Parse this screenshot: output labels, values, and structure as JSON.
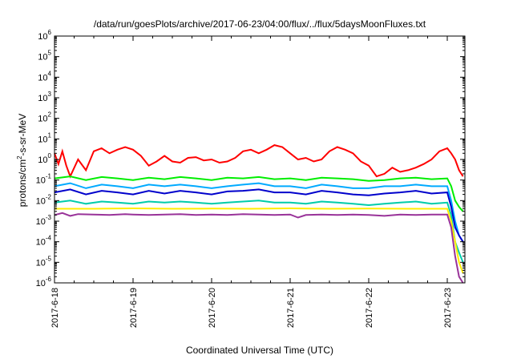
{
  "chart_data": {
    "type": "line",
    "title": "/data/run/goesPlots/archive/2017-06-23/04:00/flux/../flux/5daysMoonFluxes.txt",
    "xlabel": "Coordinated Universal Time (UTC)",
    "ylabel_main": "protons/cm",
    "ylabel_sup": "2",
    "ylabel_rest": "-s-sr-MeV",
    "y_scale": "log",
    "ylim": [
      1e-06,
      1000000.0
    ],
    "xlim_days": [
      0,
      5.2
    ],
    "grid": false,
    "legend": "none",
    "x_tick_labels": [
      "2017-6-18",
      "2017-6-19",
      "2017-6-20",
      "2017-6-21",
      "2017-6-22",
      "2017-6-23"
    ],
    "y_ticks": [
      {
        "base": "10",
        "exp": "-6"
      },
      {
        "base": "10",
        "exp": "-5"
      },
      {
        "base": "10",
        "exp": "-4"
      },
      {
        "base": "10",
        "exp": "-3"
      },
      {
        "base": "10",
        "exp": "-2"
      },
      {
        "base": "10",
        "exp": "-1"
      },
      {
        "base": "10",
        "exp": "0"
      },
      {
        "base": "10",
        "exp": "1"
      },
      {
        "base": "10",
        "exp": "2"
      },
      {
        "base": "10",
        "exp": "3"
      },
      {
        "base": "10",
        "exp": "4"
      },
      {
        "base": "10",
        "exp": "5"
      },
      {
        "base": "10",
        "exp": "6"
      }
    ],
    "series": [
      {
        "color": "#ff0000",
        "x": [
          0,
          0.05,
          0.1,
          0.15,
          0.2,
          0.3,
          0.4,
          0.5,
          0.6,
          0.7,
          0.8,
          0.9,
          1.0,
          1.1,
          1.2,
          1.3,
          1.4,
          1.5,
          1.6,
          1.7,
          1.8,
          1.9,
          2.0,
          2.1,
          2.2,
          2.3,
          2.4,
          2.5,
          2.6,
          2.7,
          2.8,
          2.9,
          3.0,
          3.1,
          3.2,
          3.3,
          3.4,
          3.5,
          3.6,
          3.7,
          3.8,
          3.9,
          4.0,
          4.1,
          4.2,
          4.3,
          4.4,
          4.5,
          4.6,
          4.7,
          4.8,
          4.9,
          5.0,
          5.05,
          5.1,
          5.15,
          5.2
        ],
        "y": [
          2.0,
          0.6,
          2.5,
          0.5,
          0.15,
          1.0,
          0.3,
          2.5,
          3.5,
          2.0,
          3.0,
          4.0,
          3.0,
          1.5,
          0.5,
          0.8,
          1.5,
          0.8,
          0.7,
          1.2,
          1.3,
          0.9,
          1.0,
          0.7,
          0.8,
          1.2,
          2.5,
          3.0,
          2.0,
          3.0,
          5.0,
          4.0,
          2.0,
          1.0,
          1.2,
          0.8,
          1.0,
          2.5,
          4.0,
          3.0,
          2.0,
          0.8,
          0.5,
          0.15,
          0.2,
          0.4,
          0.25,
          0.3,
          0.4,
          0.6,
          1.0,
          2.5,
          3.5,
          2.0,
          1.0,
          0.3,
          0.15
        ]
      },
      {
        "color": "#00ee00",
        "x": [
          0,
          0.2,
          0.4,
          0.6,
          0.8,
          1.0,
          1.2,
          1.4,
          1.6,
          1.8,
          2.0,
          2.2,
          2.4,
          2.6,
          2.8,
          3.0,
          3.2,
          3.4,
          3.6,
          3.8,
          4.0,
          4.2,
          4.4,
          4.6,
          4.8,
          5.0,
          5.05,
          5.1,
          5.15,
          5.2
        ],
        "y": [
          0.12,
          0.15,
          0.1,
          0.14,
          0.12,
          0.1,
          0.13,
          0.11,
          0.14,
          0.12,
          0.1,
          0.13,
          0.12,
          0.14,
          0.11,
          0.12,
          0.1,
          0.13,
          0.12,
          0.11,
          0.09,
          0.1,
          0.12,
          0.13,
          0.11,
          0.12,
          0.05,
          0.01,
          0.005,
          0.003
        ]
      },
      {
        "color": "#00aaff",
        "x": [
          0,
          0.2,
          0.4,
          0.6,
          0.8,
          1.0,
          1.2,
          1.4,
          1.6,
          1.8,
          2.0,
          2.2,
          2.4,
          2.6,
          2.8,
          3.0,
          3.2,
          3.4,
          3.6,
          3.8,
          4.0,
          4.2,
          4.4,
          4.6,
          4.8,
          5.0,
          5.05,
          5.1,
          5.15,
          5.2
        ],
        "y": [
          0.05,
          0.07,
          0.04,
          0.06,
          0.05,
          0.04,
          0.06,
          0.05,
          0.06,
          0.05,
          0.04,
          0.05,
          0.06,
          0.07,
          0.05,
          0.05,
          0.04,
          0.06,
          0.05,
          0.04,
          0.04,
          0.05,
          0.05,
          0.06,
          0.05,
          0.05,
          0.01,
          0.001,
          0.0002,
          0.0001
        ]
      },
      {
        "color": "#0000cc",
        "x": [
          0,
          0.2,
          0.4,
          0.6,
          0.8,
          1.0,
          1.2,
          1.4,
          1.6,
          1.8,
          2.0,
          2.2,
          2.4,
          2.6,
          2.8,
          3.0,
          3.2,
          3.4,
          3.6,
          3.8,
          4.0,
          4.2,
          4.4,
          4.6,
          4.8,
          5.0,
          5.05,
          5.1,
          5.15,
          5.2
        ],
        "y": [
          0.025,
          0.035,
          0.02,
          0.03,
          0.025,
          0.02,
          0.03,
          0.022,
          0.03,
          0.025,
          0.02,
          0.028,
          0.03,
          0.035,
          0.025,
          0.025,
          0.02,
          0.03,
          0.025,
          0.02,
          0.018,
          0.022,
          0.025,
          0.03,
          0.022,
          0.025,
          0.005,
          0.0005,
          0.0002,
          0.0001
        ]
      },
      {
        "color": "#00ccaa",
        "x": [
          0,
          0.2,
          0.4,
          0.6,
          0.8,
          1.0,
          1.2,
          1.4,
          1.6,
          1.8,
          2.0,
          2.2,
          2.4,
          2.6,
          2.8,
          3.0,
          3.2,
          3.4,
          3.6,
          3.8,
          4.0,
          4.2,
          4.4,
          4.6,
          4.8,
          5.0,
          5.05,
          5.1,
          5.15,
          5.2
        ],
        "y": [
          0.008,
          0.01,
          0.007,
          0.009,
          0.008,
          0.007,
          0.009,
          0.008,
          0.009,
          0.008,
          0.007,
          0.008,
          0.009,
          0.01,
          0.008,
          0.008,
          0.007,
          0.009,
          0.008,
          0.007,
          0.006,
          0.007,
          0.008,
          0.009,
          0.007,
          0.008,
          0.002,
          0.0001,
          3e-05,
          1e-05
        ]
      },
      {
        "color": "#ffee00",
        "x": [
          0,
          0.5,
          1.0,
          1.5,
          2.0,
          2.5,
          3.0,
          3.5,
          4.0,
          4.5,
          5.0,
          5.05,
          5.1,
          5.15,
          5.2
        ],
        "y": [
          0.004,
          0.004,
          0.0042,
          0.004,
          0.0041,
          0.004,
          0.0042,
          0.004,
          0.0041,
          0.004,
          0.004,
          0.001,
          0.0001,
          1e-05,
          3e-06
        ]
      },
      {
        "color": "#993399",
        "x": [
          0,
          0.1,
          0.2,
          0.3,
          0.5,
          0.7,
          0.9,
          1.0,
          1.2,
          1.4,
          1.6,
          1.8,
          2.0,
          2.2,
          2.4,
          2.6,
          2.8,
          3.0,
          3.1,
          3.2,
          3.4,
          3.6,
          3.8,
          4.0,
          4.2,
          4.4,
          4.6,
          4.8,
          5.0,
          5.05,
          5.1,
          5.15,
          5.2
        ],
        "y": [
          0.002,
          0.0025,
          0.0018,
          0.0022,
          0.0021,
          0.002,
          0.0022,
          0.0021,
          0.002,
          0.0021,
          0.0022,
          0.002,
          0.0021,
          0.002,
          0.0022,
          0.0021,
          0.002,
          0.0021,
          0.0015,
          0.002,
          0.0021,
          0.002,
          0.0021,
          0.002,
          0.0018,
          0.0021,
          0.002,
          0.0021,
          0.0021,
          0.0005,
          2e-05,
          2e-06,
          1e-06
        ]
      }
    ]
  }
}
